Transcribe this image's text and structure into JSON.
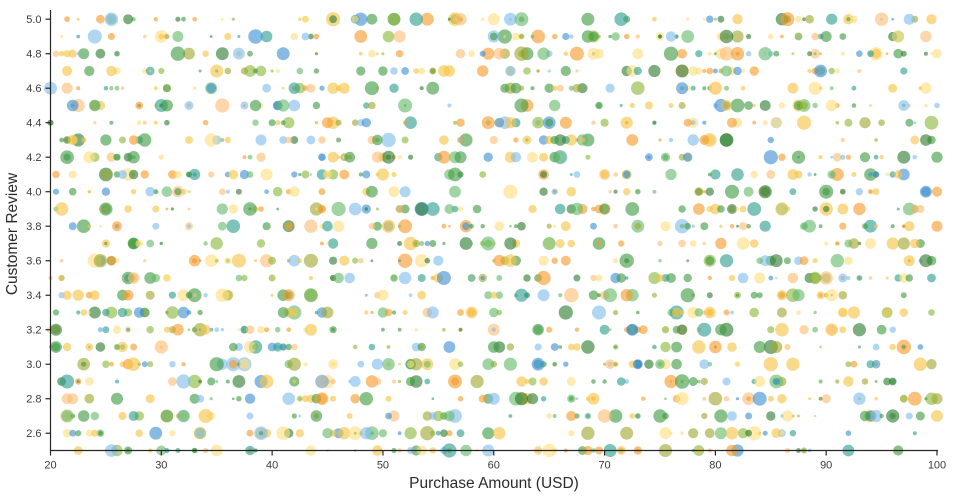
{
  "chart_data": {
    "type": "scatter",
    "title": "",
    "xlabel": "Purchase Amount (USD)",
    "ylabel": "Customer Review",
    "x_axis": {
      "min": 20,
      "max": 100,
      "ticks": [
        20,
        30,
        40,
        50,
        60,
        70,
        80,
        90,
        100
      ]
    },
    "y_axis": {
      "min": 2.5,
      "max": 5.0,
      "ticks": [
        2.6,
        2.8,
        3.0,
        3.2,
        3.4,
        3.6,
        3.8,
        4.0,
        4.2,
        4.4,
        4.6,
        4.8,
        5.0
      ],
      "tick_decimals": 1
    },
    "grid": false,
    "legend": "none",
    "background_color": "#ffffff",
    "axis_color": "#262626",
    "points_description": {
      "y_values": "discrete review scores from 2.5 to 5.0 in steps of 0.1 (26 horizontal rows of dots)",
      "x_values": "purchase amounts spread across 20 to 100 USD, roughly uniform, about 60-75 dots per row",
      "marker": "circle",
      "marker_radius_px": [
        1.3,
        7.2
      ],
      "marker_alpha": 0.62
    },
    "palette": [
      {
        "color": "#3f9b42",
        "weight": 12
      },
      {
        "color": "#2e7d32",
        "weight": 5
      },
      {
        "color": "#66bb6a",
        "weight": 7
      },
      {
        "color": "#8ab83a",
        "weight": 6
      },
      {
        "color": "#2f9e8f",
        "weight": 5
      },
      {
        "color": "#a2a832",
        "weight": 5
      },
      {
        "color": "#f6c344",
        "weight": 13
      },
      {
        "color": "#ffdf7e",
        "weight": 9
      },
      {
        "color": "#f59b2c",
        "weight": 10
      },
      {
        "color": "#fbbd74",
        "weight": 7
      },
      {
        "color": "#7fbdee",
        "weight": 9
      },
      {
        "color": "#3f8fd2",
        "weight": 6
      }
    ],
    "generator": {
      "seed": 1337,
      "row_start": 2.5,
      "row_end": 5.0,
      "row_step": 0.1,
      "dots_per_row_min": 60,
      "dots_per_row_max": 75,
      "x_quantize_step": 0.5
    }
  }
}
